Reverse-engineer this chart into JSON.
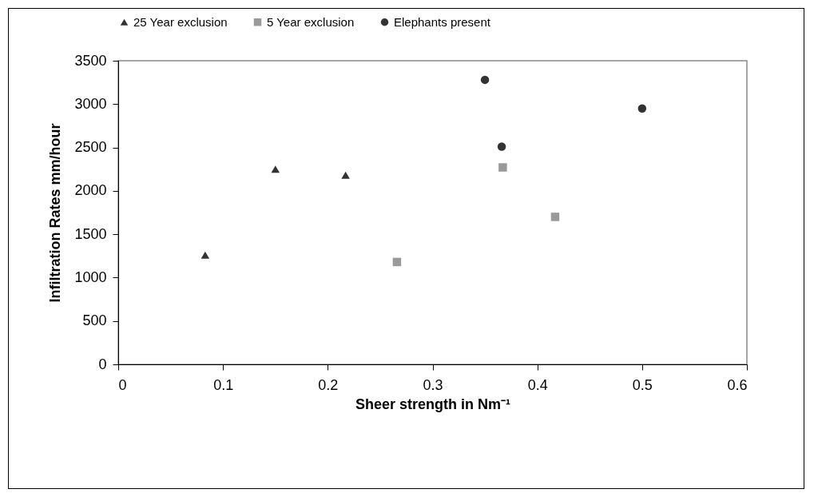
{
  "chart_data": {
    "type": "scatter",
    "xlabel": "Sheer strength in Nm⁻¹",
    "ylabel": "Infiltration Rates mm/hour",
    "xlim": [
      0,
      0.6
    ],
    "xticks": [
      0,
      0.1,
      0.2,
      0.3,
      0.4,
      0.5,
      0.6
    ],
    "ylim": [
      0,
      3500
    ],
    "yticks": [
      0,
      500,
      1000,
      1500,
      2000,
      2500,
      3000,
      3500
    ],
    "grid": false,
    "legend": "top",
    "series": [
      {
        "name": "25 Year exclusion",
        "color": "#333333",
        "marker": "triangle",
        "x": [
          0.083,
          0.15,
          0.217
        ],
        "values": [
          1260,
          2250,
          2180
        ]
      },
      {
        "name": "5 Year exclusion",
        "color": "#999999",
        "marker": "square",
        "x": [
          0.266,
          0.367,
          0.417
        ],
        "values": [
          1180,
          2270,
          1700
        ]
      },
      {
        "name": "Elephants present",
        "color": "#333333",
        "marker": "circle",
        "x": [
          0.35,
          0.366,
          0.5
        ],
        "values": [
          3280,
          2510,
          2950
        ]
      }
    ]
  }
}
